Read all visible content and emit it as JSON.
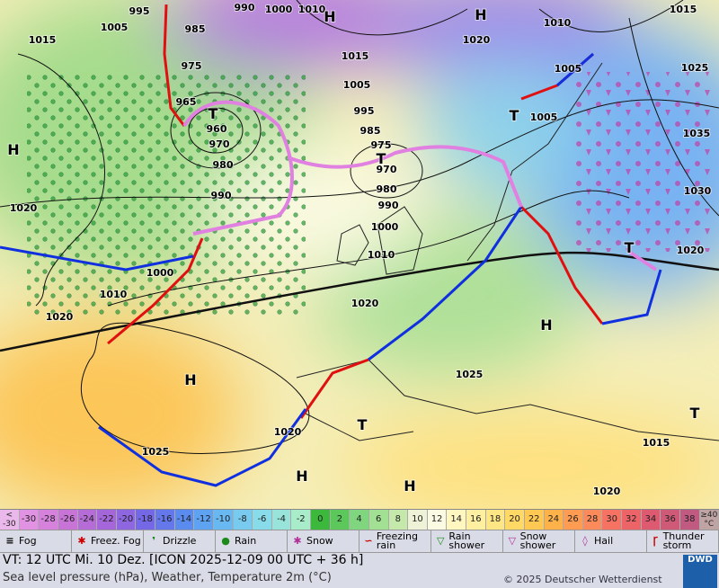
{
  "map_labels": [
    "995",
    "990",
    "1000",
    "1010",
    "H",
    "H",
    "1015",
    "1005",
    "985",
    "1015",
    "1020",
    "1010",
    "1015",
    "975",
    "1005",
    "1005",
    "1025",
    "965",
    "995",
    "1005",
    "960",
    "985",
    "975",
    "1035",
    "970",
    "970",
    "980",
    "980",
    "1030",
    "990",
    "990",
    "1000",
    "1020",
    "H",
    "T",
    "T",
    "T",
    "T",
    "1010",
    "1020",
    "1000",
    "1010",
    "1020",
    "1020",
    "H",
    "H",
    "1025",
    "T",
    "1020",
    "1015",
    "1025",
    "H",
    "H",
    "1020",
    "T"
  ],
  "scale": [
    {
      "top": "<",
      "bottom": "-30",
      "color": "#eab8ea"
    },
    {
      "label": -30,
      "color": "#e292e2"
    },
    {
      "label": -28,
      "color": "#d682dc"
    },
    {
      "label": -26,
      "color": "#c874d6"
    },
    {
      "label": -24,
      "color": "#b66cd6"
    },
    {
      "label": -22,
      "color": "#a466d8"
    },
    {
      "label": -20,
      "color": "#8e66e0"
    },
    {
      "label": -18,
      "color": "#7468e6"
    },
    {
      "label": -16,
      "color": "#6478ec"
    },
    {
      "label": -14,
      "color": "#5a8cf0"
    },
    {
      "label": -12,
      "color": "#5ea2f2"
    },
    {
      "label": -10,
      "color": "#68b8f2"
    },
    {
      "label": -8,
      "color": "#78cbef"
    },
    {
      "label": -6,
      "color": "#88dbe8"
    },
    {
      "label": -4,
      "color": "#98e4da"
    },
    {
      "label": -2,
      "color": "#a8ecca"
    },
    {
      "label": 0,
      "color": "#3cb83c"
    },
    {
      "label": 2,
      "color": "#5cc85c"
    },
    {
      "label": 4,
      "color": "#80d67e"
    },
    {
      "label": 6,
      "color": "#a2e094"
    },
    {
      "label": 8,
      "color": "#c4e9aa"
    },
    {
      "label": 10,
      "color": "#eef2d6"
    },
    {
      "label": 12,
      "color": "#fbfbe4"
    },
    {
      "label": 14,
      "color": "#fff6c0"
    },
    {
      "label": 16,
      "color": "#ffefa0"
    },
    {
      "label": 18,
      "color": "#ffe684"
    },
    {
      "label": 20,
      "color": "#ffd866"
    },
    {
      "label": 22,
      "color": "#ffc852"
    },
    {
      "label": 24,
      "color": "#ffb24a"
    },
    {
      "label": 26,
      "color": "#ff9c52"
    },
    {
      "label": 28,
      "color": "#fc8a5a"
    },
    {
      "label": 30,
      "color": "#f67262"
    },
    {
      "label": 32,
      "color": "#ec6468"
    },
    {
      "label": 34,
      "color": "#de5a70"
    },
    {
      "label": 36,
      "color": "#cf5a78"
    },
    {
      "label": 38,
      "color": "#c05a80"
    },
    {
      "top": "≥40",
      "bottom": "°C",
      "color": "#c0a4a4"
    }
  ],
  "weather": [
    "Fog",
    "Freez. Fog",
    "Drizzle",
    "Rain",
    "Snow",
    "Freezing rain",
    "Rain shower",
    "Snow shower",
    "Hail",
    "Thunder storm"
  ],
  "valid_line": "VT: 12 UTC Mi.   10 Dez. [ICON 2025-12-09  00 UTC + 36 h]",
  "subtitle": "Sea level pressure (hPa), Weather, Temperature 2m (°C)",
  "copyright": "© 2025 Deutscher Wetterdienst",
  "logo": "DWD"
}
